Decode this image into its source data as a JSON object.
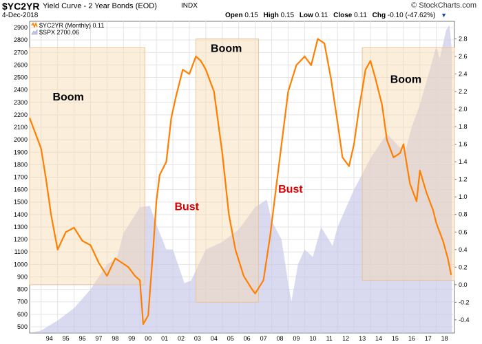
{
  "header": {
    "symbol": "$YC2YR",
    "title": "Yield Curve - 2 Year Bonds (EOD)",
    "exchange": "INDX",
    "brand": "© StockCharts.com",
    "date": "4-Dec-2018",
    "quote": {
      "open_label": "Open",
      "open": "0.15",
      "high_label": "High",
      "high": "0.15",
      "low_label": "Low",
      "low": "0.11",
      "close_label": "Close",
      "close": "0.11",
      "chg_label": "Chg",
      "chg": "-0.10 (-47.62%)",
      "chg_icon": "down-triangle-icon"
    }
  },
  "chart_data": {
    "type": "line",
    "x_ticks": [
      "94",
      "95",
      "96",
      "97",
      "98",
      "99",
      "00",
      "01",
      "02",
      "03",
      "04",
      "05",
      "06",
      "07",
      "08",
      "09",
      "10",
      "11",
      "12",
      "13",
      "14",
      "15",
      "16",
      "17",
      "18"
    ],
    "xlim": [
      1993.3,
      2019.1
    ],
    "left_axis": {
      "ylim": [
        450,
        2950
      ],
      "ticks": [
        "500",
        "600",
        "700",
        "800",
        "900",
        "1000",
        "1100",
        "1200",
        "1300",
        "1400",
        "1500",
        "1600",
        "1700",
        "1800",
        "1900",
        "2000",
        "2100",
        "2200",
        "2300",
        "2400",
        "2500",
        "2600",
        "2700",
        "2800",
        "2900"
      ]
    },
    "right_axis": {
      "ylim": [
        -0.55,
        3.0
      ],
      "ticks": [
        "-0.4",
        "-0.2",
        "0.0",
        "0.2",
        "0.4",
        "0.6",
        "0.8",
        "1.0",
        "1.2",
        "1.4",
        "1.6",
        "1.8",
        "2.0",
        "2.2",
        "2.4",
        "2.6",
        "2.8"
      ]
    },
    "grid": true,
    "legend": [
      {
        "name": "$YC2YR (Monthly) 0.11",
        "color": "#ff7f00",
        "icon": "line-series-icon"
      },
      {
        "name": "$SPX 2700.06",
        "color": "#c4c4e8",
        "icon": "area-series-icon"
      }
    ],
    "series": [
      {
        "name": "$YC2YR (Monthly) 0.11",
        "axis": "right",
        "color": "#ff7f00",
        "x": [
          1993.3,
          1993.6,
          1994.0,
          1994.3,
          1994.6,
          1995.0,
          1995.5,
          1996.0,
          1996.5,
          1997.0,
          1997.5,
          1998.0,
          1998.5,
          1998.9,
          1999.3,
          1999.7,
          2000.0,
          2000.2,
          2000.5,
          2000.8,
          2001.0,
          2001.2,
          2001.6,
          2001.9,
          2002.2,
          2002.6,
          2003.0,
          2003.4,
          2003.7,
          2004.0,
          2004.5,
          2005.0,
          2005.4,
          2005.8,
          2006.3,
          2006.8,
          2007.0,
          2007.5,
          2007.9,
          2008.2,
          2008.6,
          2009.0,
          2009.5,
          2010.0,
          2010.4,
          2010.8,
          2011.2,
          2011.6,
          2012.0,
          2012.3,
          2012.7,
          2013.0,
          2013.3,
          2013.7,
          2014.0,
          2014.3,
          2014.7,
          2015.0,
          2015.4,
          2015.8,
          2016.0,
          2016.4,
          2016.8,
          2017.0,
          2017.4,
          2017.8,
          2018.0,
          2018.4,
          2018.7,
          2018.9
        ],
        "y": [
          1.9,
          1.75,
          1.55,
          1.2,
          0.8,
          0.4,
          0.6,
          0.65,
          0.5,
          0.45,
          0.25,
          0.1,
          0.3,
          0.25,
          0.2,
          0.1,
          0.05,
          -0.45,
          -0.35,
          0.4,
          0.95,
          1.25,
          1.4,
          1.9,
          2.15,
          2.45,
          2.4,
          2.6,
          2.55,
          2.45,
          2.2,
          1.5,
          0.8,
          0.4,
          0.1,
          -0.05,
          -0.1,
          0.05,
          0.55,
          1.0,
          1.6,
          2.2,
          2.5,
          2.6,
          2.5,
          2.8,
          2.75,
          2.35,
          1.85,
          1.45,
          1.35,
          1.6,
          2.0,
          2.45,
          2.55,
          2.35,
          2.05,
          1.65,
          1.45,
          1.5,
          1.6,
          1.15,
          0.95,
          1.3,
          1.05,
          0.85,
          0.7,
          0.5,
          0.3,
          0.11
        ]
      },
      {
        "name": "$SPX 2700.06",
        "axis": "left",
        "color": "#c4c4e8",
        "x": [
          1993.3,
          1994.0,
          1995.0,
          1996.0,
          1997.0,
          1998.0,
          1998.6,
          1999.0,
          2000.0,
          2000.6,
          2001.0,
          2001.6,
          2002.0,
          2002.7,
          2003.1,
          2003.5,
          2004.0,
          2005.0,
          2006.0,
          2007.0,
          2007.7,
          2008.0,
          2008.6,
          2009.0,
          2009.2,
          2009.6,
          2010.0,
          2010.5,
          2011.0,
          2011.7,
          2012.0,
          2013.0,
          2014.0,
          2015.0,
          2015.7,
          2016.1,
          2016.5,
          2017.0,
          2018.0,
          2018.2,
          2018.6,
          2018.8,
          2018.95
        ],
        "y": [
          450,
          470,
          550,
          650,
          800,
          1000,
          1050,
          1250,
          1460,
          1470,
          1320,
          1120,
          1120,
          850,
          870,
          980,
          1120,
          1180,
          1280,
          1460,
          1520,
          1350,
          1200,
          850,
          700,
          1000,
          1120,
          1060,
          1300,
          1150,
          1300,
          1600,
          1850,
          2050,
          1950,
          1900,
          2100,
          2280,
          2750,
          2650,
          2880,
          2920,
          2700
        ]
      }
    ],
    "annotations": [
      {
        "text": "Boom",
        "color": "#000000",
        "x_range": [
          1993.3,
          2000.3
        ],
        "y_range": [
          0.0,
          2.7
        ],
        "axis": "right",
        "label_at": [
          1994.7,
          2.1
        ]
      },
      {
        "text": "Bust",
        "color": "#dd0000",
        "label_at": [
          2002.1,
          0.85
        ],
        "axis": "right"
      },
      {
        "text": "Boom",
        "color": "#000000",
        "x_range": [
          2003.4,
          2007.2
        ],
        "y_range": [
          -0.2,
          2.8
        ],
        "axis": "right",
        "label_at": [
          2004.3,
          2.65
        ]
      },
      {
        "text": "Bust",
        "color": "#dd0000",
        "label_at": [
          2008.4,
          1.05
        ],
        "axis": "right"
      },
      {
        "text": "Boom",
        "color": "#000000",
        "x_range": [
          2013.5,
          2019.1
        ],
        "y_range": [
          0.05,
          2.7
        ],
        "axis": "right",
        "label_at": [
          2015.2,
          2.3
        ]
      }
    ]
  }
}
